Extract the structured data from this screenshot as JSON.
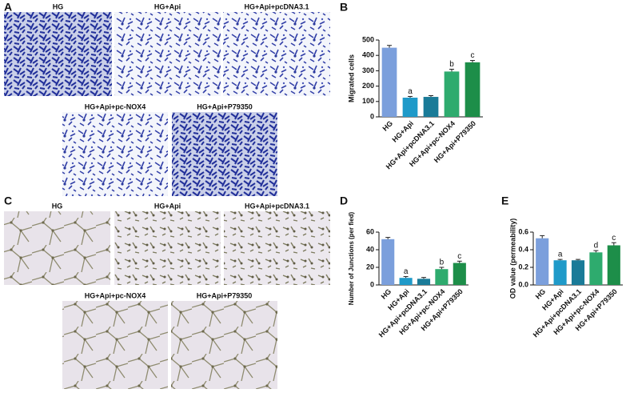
{
  "image_panels": [
    {
      "panel": "A",
      "labels": [
        "HG",
        "HG+Api",
        "HG+Api+pcDNA3.1",
        "HG+Api+pc-NOX4",
        "HG+Api+P79350"
      ]
    },
    {
      "panel": "C",
      "labels": [
        "HG",
        "HG+Api",
        "HG+Api+pcDNA3.1",
        "HG+Api+pc-NOX4",
        "HG+Api+P79350"
      ]
    }
  ],
  "chart_data": [
    {
      "type": "bar",
      "panel": "B",
      "ylabel": "Migrated cells",
      "categories": [
        "HG",
        "HG+Api",
        "HG+Api+pcDNA3.1",
        "HG+Api+pc-NOX4",
        "HG+Api+P79350"
      ],
      "values": [
        450,
        125,
        130,
        295,
        355
      ],
      "errors": [
        15,
        8,
        8,
        15,
        12
      ],
      "annotations": [
        null,
        "a",
        null,
        "b",
        "c"
      ],
      "colors": [
        "#7b9fdc",
        "#1f9ac9",
        "#1a7b98",
        "#2eab6e",
        "#1d8e49"
      ],
      "ylim": [
        0,
        500
      ],
      "yticks": [
        0,
        100,
        200,
        300,
        400,
        500
      ]
    },
    {
      "type": "bar",
      "panel": "D",
      "ylabel": "Number of Junctions (per fied)",
      "categories": [
        "HG",
        "HG+Api",
        "HG+Api+pcDNA3.1",
        "HG+Api+pc-NOX4",
        "HG+Api+P79350"
      ],
      "values": [
        52,
        8,
        7,
        18,
        25
      ],
      "errors": [
        2,
        1.5,
        1.5,
        2,
        2
      ],
      "annotations": [
        null,
        "a",
        null,
        "b",
        "c"
      ],
      "colors": [
        "#7b9fdc",
        "#1f9ac9",
        "#1a7b98",
        "#2eab6e",
        "#1d8e49"
      ],
      "ylim": [
        0,
        60
      ],
      "yticks": [
        0,
        20,
        40,
        60
      ]
    },
    {
      "type": "bar",
      "panel": "E",
      "ylabel": "OD value (permeability)",
      "categories": [
        "HG",
        "HG+Api",
        "HG+Api+pcDNA3.1",
        "HG+Api+pc-NOX4",
        "HG+Api+P79350"
      ],
      "values": [
        0.53,
        0.28,
        0.28,
        0.37,
        0.45
      ],
      "errors": [
        0.03,
        0.01,
        0.01,
        0.02,
        0.03
      ],
      "annotations": [
        null,
        "a",
        null,
        "d",
        "c"
      ],
      "colors": [
        "#7b9fdc",
        "#1f9ac9",
        "#1a7b98",
        "#2eab6e",
        "#1d8e49"
      ],
      "ylim": [
        0,
        0.6
      ],
      "yticks": [
        {
          "value": 0,
          "label": "0.0"
        },
        0.2,
        0.4,
        0.6
      ]
    }
  ]
}
